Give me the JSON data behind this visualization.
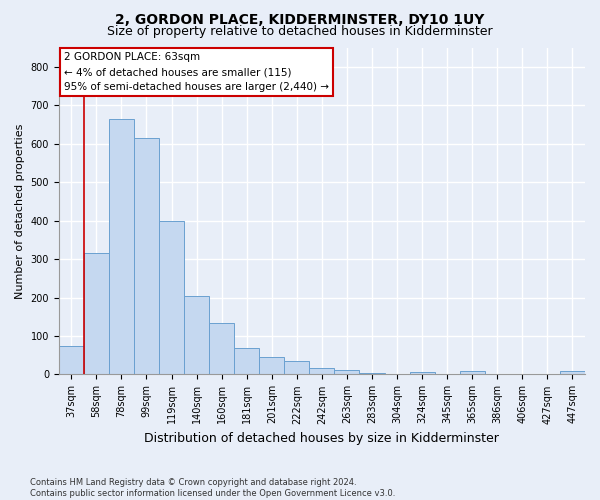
{
  "title_line1": "2, GORDON PLACE, KIDDERMINSTER, DY10 1UY",
  "title_line2": "Size of property relative to detached houses in Kidderminster",
  "xlabel": "Distribution of detached houses by size in Kidderminster",
  "ylabel": "Number of detached properties",
  "footnote": "Contains HM Land Registry data © Crown copyright and database right 2024.\nContains public sector information licensed under the Open Government Licence v3.0.",
  "categories": [
    "37sqm",
    "58sqm",
    "78sqm",
    "99sqm",
    "119sqm",
    "140sqm",
    "160sqm",
    "181sqm",
    "201sqm",
    "222sqm",
    "242sqm",
    "263sqm",
    "283sqm",
    "304sqm",
    "324sqm",
    "345sqm",
    "365sqm",
    "386sqm",
    "406sqm",
    "427sqm",
    "447sqm"
  ],
  "values": [
    75,
    315,
    665,
    615,
    400,
    205,
    135,
    70,
    45,
    35,
    18,
    12,
    5,
    0,
    7,
    0,
    8,
    0,
    0,
    0,
    8
  ],
  "bar_color": "#c5d8f0",
  "bar_edge_color": "#6aa0d0",
  "ylim": [
    0,
    850
  ],
  "yticks": [
    0,
    100,
    200,
    300,
    400,
    500,
    600,
    700,
    800
  ],
  "vline_color": "#cc0000",
  "annotation_text": "2 GORDON PLACE: 63sqm\n← 4% of detached houses are smaller (115)\n95% of semi-detached houses are larger (2,440) →",
  "annotation_fontsize": 7.5,
  "bg_color": "#e8eef8",
  "grid_color": "#ffffff",
  "title_fontsize1": 10,
  "title_fontsize2": 9,
  "ylabel_fontsize": 8,
  "xlabel_fontsize": 9,
  "tick_fontsize": 7
}
